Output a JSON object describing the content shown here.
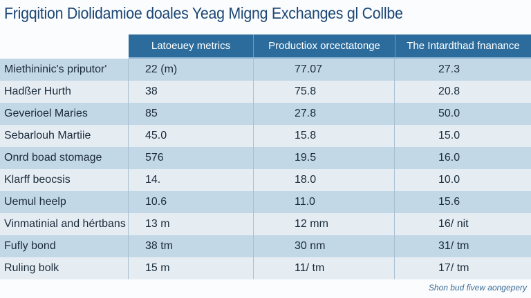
{
  "title": "Frigqition Diolidamioe doales Yeag Migng Exchanges gl Collbe",
  "colors": {
    "title": "#1b4675",
    "header_bg": "#2c6c9c",
    "row_dark": "#c3d8e6",
    "row_light": "#e5edf3"
  },
  "chart_data": {
    "type": "table",
    "columns": [
      "",
      "Latoeuey metrics",
      "Productiox orcectatonge",
      "The Intardthad fnanance"
    ],
    "rows": [
      [
        "Miethininic's priputor'",
        "22 (m)",
        "77.07",
        "27.3"
      ],
      [
        "Hadßer Hurth",
        "38",
        "75.8",
        "20.8"
      ],
      [
        "Geverioel Maries",
        "85",
        "27.8",
        "50.0"
      ],
      [
        "Sebarlouh Martiie",
        "45.0",
        "15.8",
        "15.0"
      ],
      [
        "Onrd boad stomage",
        "576",
        "19.5",
        "16.0"
      ],
      [
        "Klarff beocsis",
        "14.",
        "18.0",
        "10.0"
      ],
      [
        "Uemul heelp",
        "10.6",
        "11.0",
        "15.6"
      ],
      [
        "Vinmatinial and hértbans",
        "13 m",
        "12 mm",
        "16/ nit"
      ],
      [
        "Fufly bond",
        "38 tm",
        "30 nm",
        "31/ tm"
      ],
      [
        "Ruling bolk",
        "15 m",
        "11/ tm",
        "17/ tm"
      ]
    ]
  },
  "footnote": "Shon bud fivew aongepery"
}
